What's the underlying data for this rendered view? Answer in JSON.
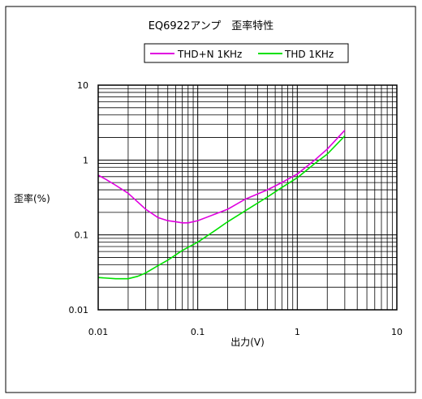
{
  "chart_data": {
    "type": "line",
    "title": "EQ6922アンプ　歪率特性",
    "xlabel": "出力(V)",
    "ylabel": "歪率(%)",
    "x_scale": "log",
    "y_scale": "log",
    "xlim": [
      0.01,
      10
    ],
    "ylim": [
      0.01,
      10
    ],
    "x_ticks": [
      "0.01",
      "0.1",
      "1",
      "10"
    ],
    "y_ticks": [
      "10",
      "1",
      "0.1",
      "0.01"
    ],
    "x_tick_values": [
      0.01,
      0.1,
      1,
      10
    ],
    "y_tick_values": [
      10,
      1,
      0.1,
      0.01
    ],
    "grid": true,
    "legend_position": "top-right",
    "series": [
      {
        "name": "THD+N 1KHz",
        "color": "#e000e0",
        "x": [
          0.01,
          0.012,
          0.015,
          0.02,
          0.03,
          0.04,
          0.05,
          0.06,
          0.07,
          0.08,
          0.1,
          0.15,
          0.2,
          0.3,
          0.5,
          0.7,
          1,
          1.5,
          2,
          3
        ],
        "y": [
          0.63,
          0.55,
          0.46,
          0.36,
          0.22,
          0.17,
          0.155,
          0.15,
          0.145,
          0.145,
          0.155,
          0.19,
          0.22,
          0.3,
          0.4,
          0.5,
          0.65,
          1.0,
          1.4,
          2.5
        ]
      },
      {
        "name": "THD 1KHz",
        "color": "#00e000",
        "x": [
          0.01,
          0.015,
          0.02,
          0.025,
          0.03,
          0.04,
          0.05,
          0.07,
          0.1,
          0.15,
          0.2,
          0.3,
          0.5,
          0.7,
          1,
          1.5,
          2,
          3
        ],
        "y": [
          0.027,
          0.026,
          0.026,
          0.028,
          0.031,
          0.039,
          0.046,
          0.062,
          0.08,
          0.115,
          0.15,
          0.21,
          0.32,
          0.43,
          0.58,
          0.9,
          1.2,
          2.1
        ]
      }
    ]
  }
}
